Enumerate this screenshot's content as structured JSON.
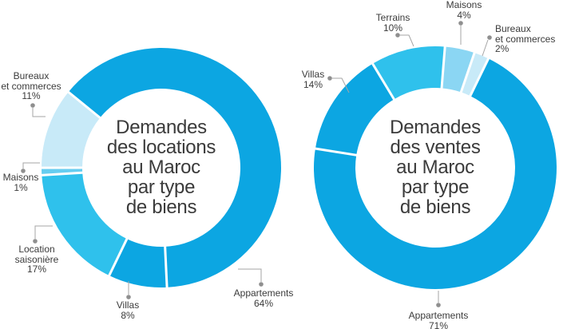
{
  "palette": {
    "main_blue": "#0CA6E2",
    "medium_cyan": "#2FC1EC",
    "light_sky": "#8BD6F3",
    "light_sky_deep": "#66CDF0",
    "pale_blue": "#C8EAF8",
    "text_color": "#3B3B3B",
    "leader_line_color": "#A5A5A5",
    "leader_dot_color": "#8F8F8F"
  },
  "chart_data": [
    {
      "type": "pie",
      "subtype": "donut",
      "title": "Demandes des locations au Maroc par type de biens",
      "title_lines": [
        "Demandes",
        "des locations",
        "au Maroc",
        "par type",
        "de biens"
      ],
      "unit": "%",
      "legend_position": "outside-callouts",
      "segments": [
        {
          "id": "maisons",
          "label": "Maisons",
          "label_lines": [
            "Maisons"
          ],
          "value": 1,
          "pct_label": "1%",
          "color": "#66CDF0"
        },
        {
          "id": "bureaux",
          "label": "Bureaux et commerces",
          "label_lines": [
            "Bureaux",
            "et commerces"
          ],
          "value": 11,
          "pct_label": "11%",
          "color": "#C8EAF8"
        },
        {
          "id": "appartements",
          "label": "Appartements",
          "label_lines": [
            "Appartements"
          ],
          "value": 64,
          "pct_label": "64%",
          "color": "#0CA6E2"
        },
        {
          "id": "villas",
          "label": "Villas",
          "label_lines": [
            "Villas"
          ],
          "value": 8,
          "pct_label": "8%",
          "color": "#0CA6E2"
        },
        {
          "id": "location",
          "label": "Location saisonière",
          "label_lines": [
            "Location",
            "saisonière"
          ],
          "value": 17,
          "pct_label": "17%",
          "color": "#2FC1EC"
        }
      ]
    },
    {
      "type": "pie",
      "subtype": "donut",
      "title": "Demandes des ventes au Maroc par type de biens",
      "title_lines": [
        "Demandes",
        "des ventes",
        "au Maroc",
        "par type",
        "de biens"
      ],
      "unit": "%",
      "legend_position": "outside-callouts",
      "segments": [
        {
          "id": "maisons",
          "label": "Maisons",
          "label_lines": [
            "Maisons"
          ],
          "value": 4,
          "pct_label": "4%",
          "color": "#8BD6F3"
        },
        {
          "id": "bureaux",
          "label": "Bureaux et commerces",
          "label_lines": [
            "Bureaux",
            "et commerces"
          ],
          "value": 2,
          "pct_label": "2%",
          "color": "#C8EAF8"
        },
        {
          "id": "appartements",
          "label": "Appartements",
          "label_lines": [
            "Appartements"
          ],
          "value": 71,
          "pct_label": "71%",
          "color": "#0CA6E2"
        },
        {
          "id": "villas",
          "label": "Villas",
          "label_lines": [
            "Villas"
          ],
          "value": 14,
          "pct_label": "14%",
          "color": "#0CA6E2"
        },
        {
          "id": "terrains",
          "label": "Terrains",
          "label_lines": [
            "Terrains"
          ],
          "value": 10,
          "pct_label": "10%",
          "color": "#2FC1EC"
        }
      ]
    }
  ]
}
